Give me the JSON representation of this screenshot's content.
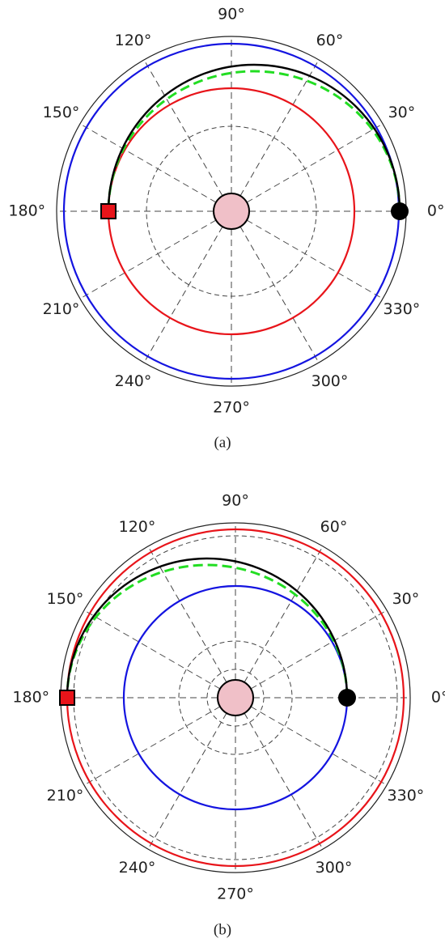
{
  "panels": [
    {
      "angle_labels": [
        "0°",
        "30°",
        "60°",
        "90°",
        "120°",
        "150°",
        "180°",
        "210°",
        "240°",
        "270°",
        "300°",
        "330°"
      ],
      "caption": "(a)"
    },
    {
      "angle_labels": [
        "0°",
        "30°",
        "60°",
        "90°",
        "120°",
        "150°",
        "180°",
        "210°",
        "240°",
        "270°",
        "300°",
        "330°"
      ],
      "caption": "(b)"
    }
  ]
}
